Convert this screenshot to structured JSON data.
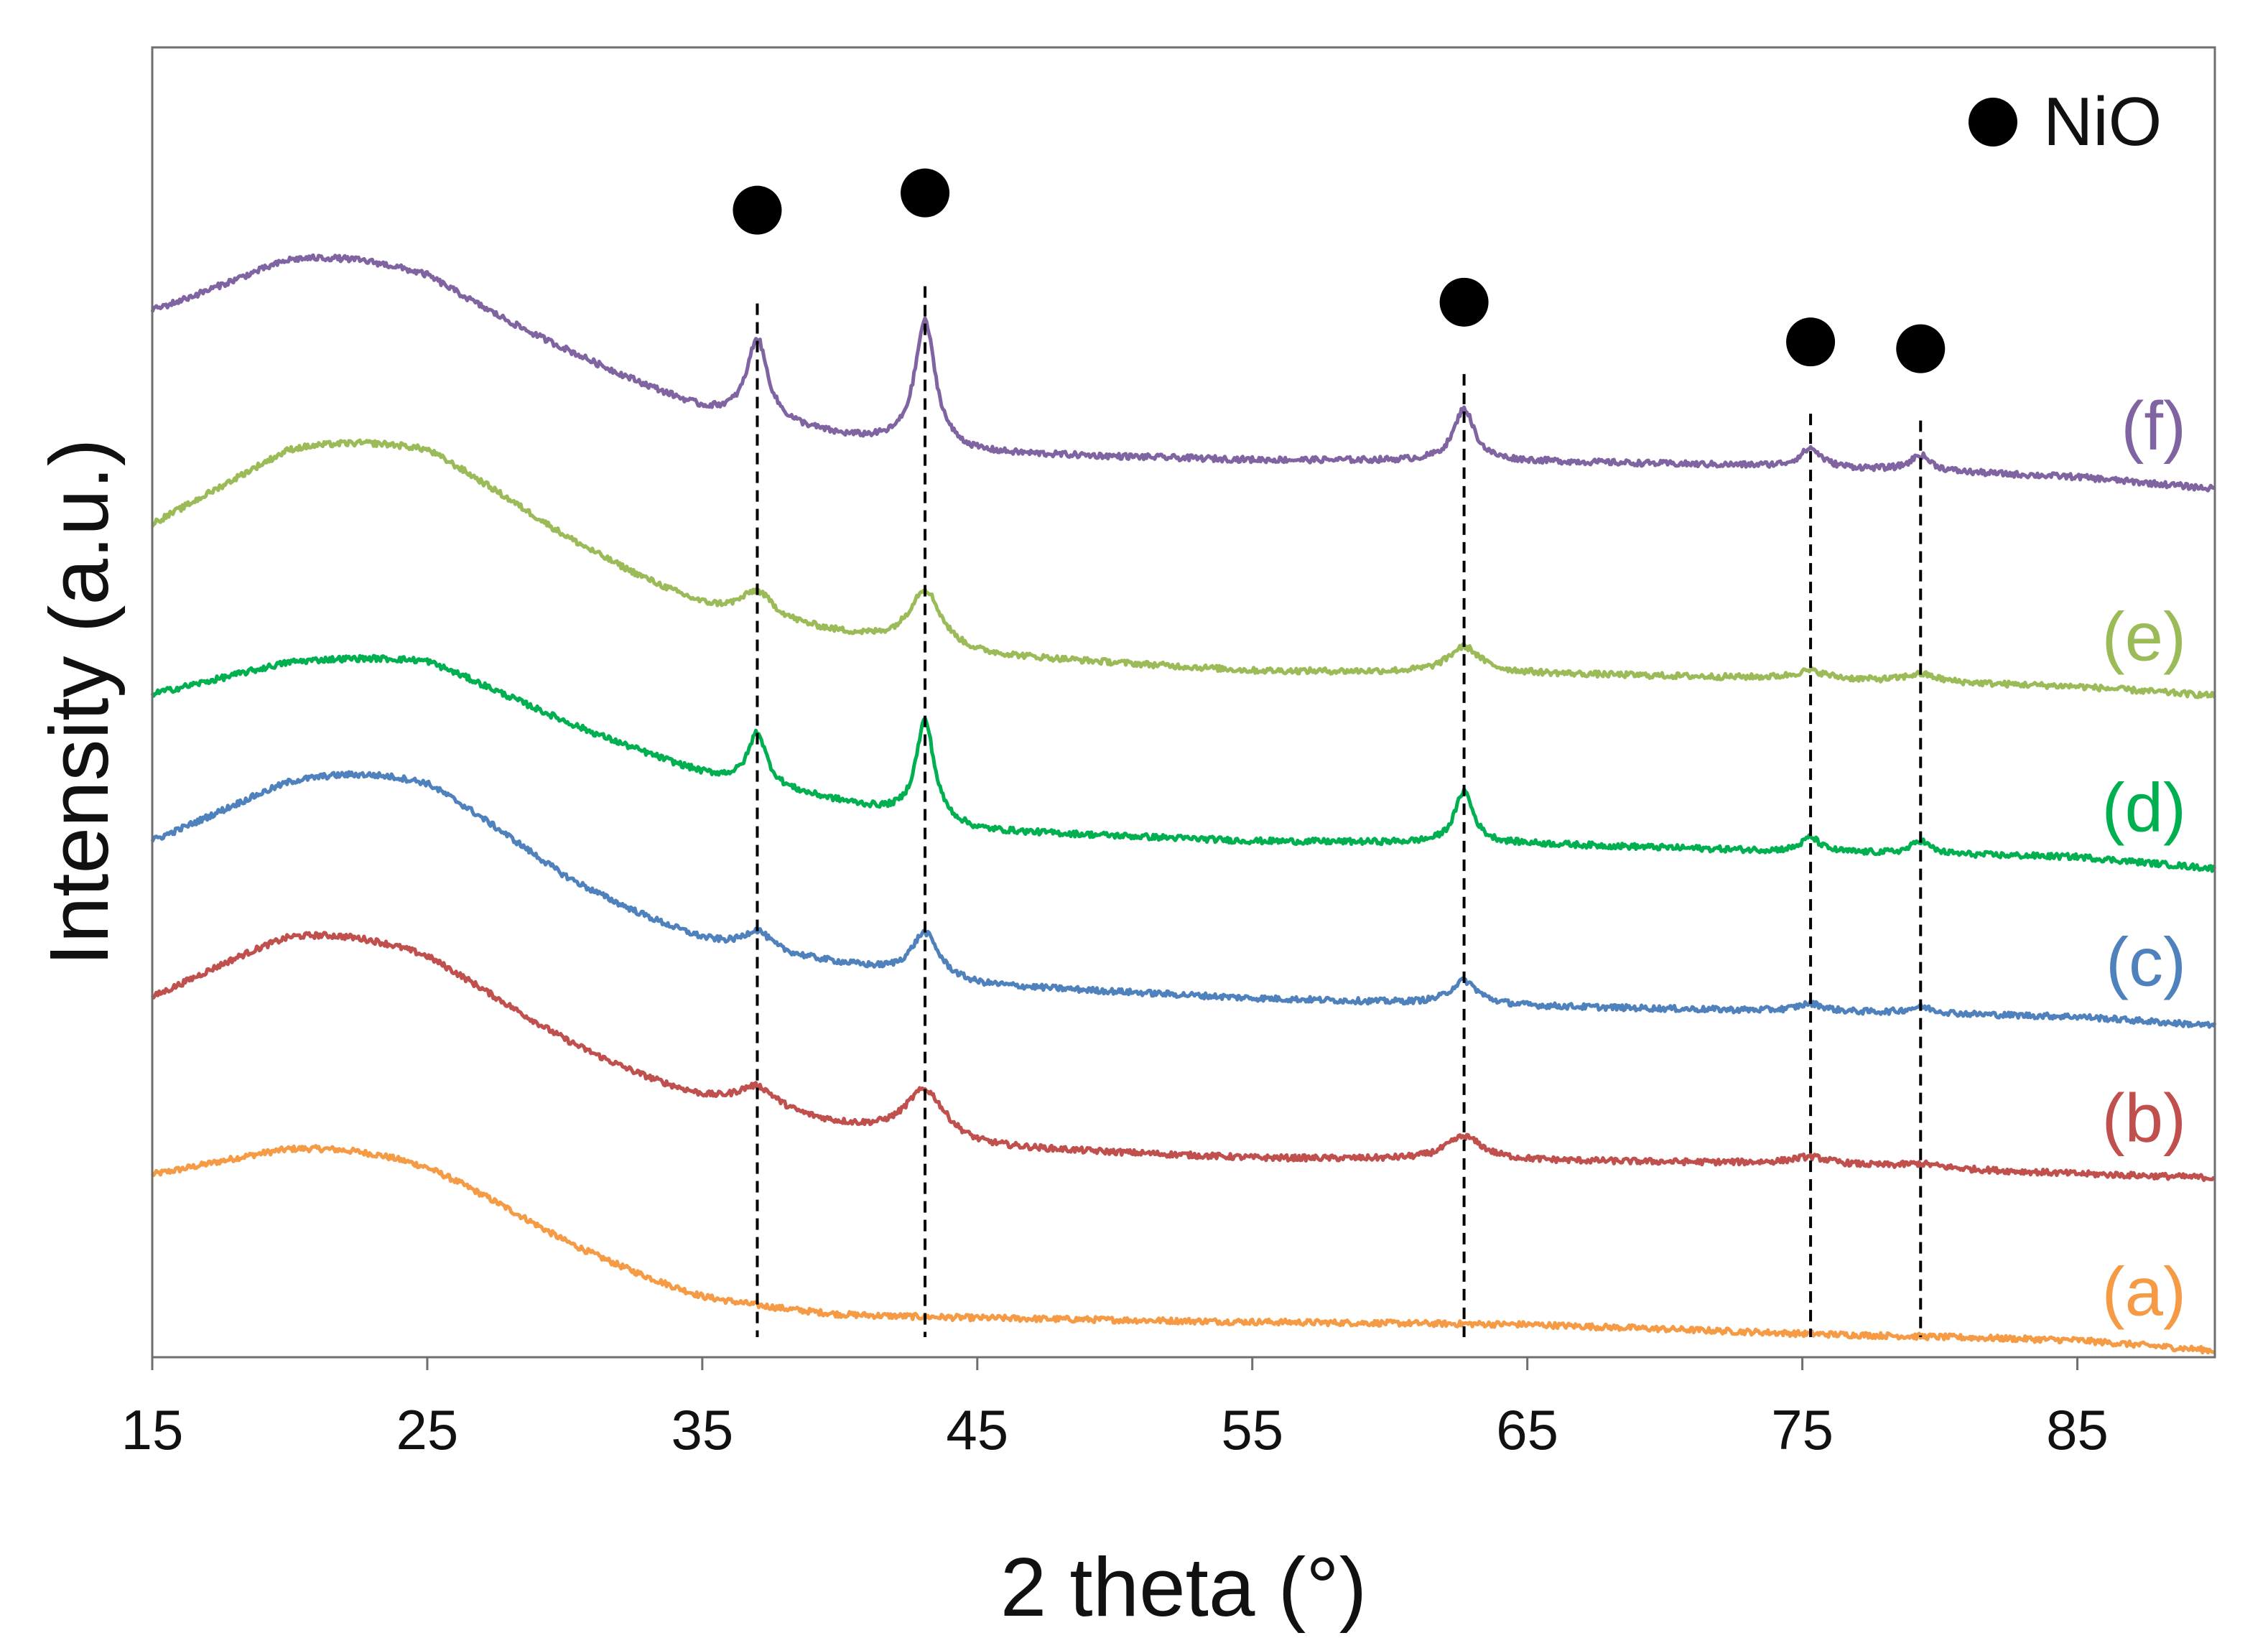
{
  "chart_data": {
    "type": "line",
    "title": "",
    "xlabel": "2 theta (°)",
    "ylabel": "Intensity (a.u.)",
    "xlim": [
      15,
      90
    ],
    "ylim": [
      0,
      100
    ],
    "xticks": [
      15,
      25,
      35,
      45,
      55,
      65,
      75,
      85
    ],
    "xtick_labels": [
      "15",
      "25",
      "35",
      "45",
      "55",
      "65",
      "75",
      "85"
    ],
    "grid": false,
    "y_units": "stacked arbitrary intensity (0 = axis bottom, 100 = axis top)",
    "legend": {
      "marker": "filled-circle",
      "label": "NiO",
      "placement": "top-right"
    },
    "nio_peaks": [
      37.0,
      43.1,
      62.7,
      75.3,
      79.3
    ],
    "series": [
      {
        "name": "(a)",
        "color": "#F59A45",
        "baseline": [
          [
            15,
            11.8
          ],
          [
            20,
            11.0
          ],
          [
            25,
            9.2
          ],
          [
            30,
            6.2
          ],
          [
            35,
            4.0
          ],
          [
            40,
            3.2
          ],
          [
            45,
            3.0
          ],
          [
            55,
            2.7
          ],
          [
            65,
            2.5
          ],
          [
            75,
            1.8
          ],
          [
            85,
            1.3
          ],
          [
            90,
            0.5
          ]
        ],
        "humps": [
          [
            23.0,
            5.6,
            5.8
          ]
        ],
        "peaks": []
      },
      {
        "name": "(b)",
        "color": "#C0504D",
        "baseline": [
          [
            15,
            24.6
          ],
          [
            20,
            26.0
          ],
          [
            25,
            25.0
          ],
          [
            30,
            22.0
          ],
          [
            35,
            19.4
          ],
          [
            40,
            17.6
          ],
          [
            45,
            16.0
          ],
          [
            55,
            15.2
          ],
          [
            65,
            15.0
          ],
          [
            75,
            14.8
          ],
          [
            85,
            14.0
          ],
          [
            90,
            13.7
          ]
        ],
        "humps": [
          [
            22.0,
            6.5,
            5.5
          ]
        ],
        "peaks": [
          [
            37.0,
            1.8,
            0.9
          ],
          [
            43.1,
            3.8,
            0.9
          ],
          [
            62.7,
            1.8,
            0.8
          ],
          [
            75.3,
            0.5,
            0.8
          ],
          [
            79.3,
            0.3,
            0.8
          ]
        ]
      },
      {
        "name": "(c)",
        "color": "#4F81BD",
        "baseline": [
          [
            15,
            37.3
          ],
          [
            20,
            38.6
          ],
          [
            25,
            38.0
          ],
          [
            30,
            34.0
          ],
          [
            35,
            31.4
          ],
          [
            40,
            30.0
          ],
          [
            45,
            28.4
          ],
          [
            55,
            27.4
          ],
          [
            65,
            26.8
          ],
          [
            75,
            26.4
          ],
          [
            85,
            26.0
          ],
          [
            90,
            25.3
          ]
        ],
        "humps": [
          [
            23.0,
            6.2,
            5.5
          ]
        ],
        "peaks": [
          [
            37.0,
            1.5,
            0.6
          ],
          [
            43.1,
            3.4,
            0.6
          ],
          [
            62.7,
            1.8,
            0.6
          ],
          [
            75.3,
            0.6,
            0.6
          ],
          [
            79.3,
            0.5,
            0.6
          ]
        ]
      },
      {
        "name": "(d)",
        "color": "#00B050",
        "baseline": [
          [
            15,
            50.1
          ],
          [
            20,
            51.4
          ],
          [
            25,
            51.3
          ],
          [
            30,
            47.8
          ],
          [
            35,
            44.5
          ],
          [
            40,
            42.4
          ],
          [
            45,
            40.2
          ],
          [
            55,
            39.4
          ],
          [
            65,
            39.2
          ],
          [
            75,
            38.6
          ],
          [
            85,
            38.2
          ],
          [
            90,
            37.3
          ]
        ],
        "humps": [
          [
            23.0,
            2.0,
            5.0
          ]
        ],
        "peaks": [
          [
            37.0,
            4.0,
            0.4
          ],
          [
            43.1,
            7.6,
            0.4
          ],
          [
            62.7,
            4.0,
            0.4
          ],
          [
            75.3,
            1.1,
            0.4
          ],
          [
            79.3,
            1.0,
            0.4
          ]
        ]
      },
      {
        "name": "(e)",
        "color": "#9BBB59",
        "baseline": [
          [
            15,
            61.9
          ],
          [
            20,
            65.0
          ],
          [
            25,
            64.6
          ],
          [
            30,
            60.5
          ],
          [
            35,
            57.0
          ],
          [
            40,
            55.2
          ],
          [
            45,
            53.6
          ],
          [
            55,
            52.4
          ],
          [
            65,
            52.2
          ],
          [
            75,
            51.8
          ],
          [
            85,
            51.2
          ],
          [
            90,
            50.5
          ]
        ],
        "humps": [
          [
            23.0,
            5.0,
            5.5
          ]
        ],
        "peaks": [
          [
            37.0,
            2.0,
            0.7
          ],
          [
            43.1,
            4.4,
            0.7
          ],
          [
            62.7,
            2.0,
            0.7
          ],
          [
            75.3,
            0.6,
            0.7
          ],
          [
            79.3,
            0.6,
            0.7
          ]
        ]
      },
      {
        "name": "(f)",
        "color": "#8064A2",
        "baseline": [
          [
            15,
            79.2
          ],
          [
            20,
            80.9
          ],
          [
            25,
            80.3
          ],
          [
            30,
            76.6
          ],
          [
            35,
            72.4
          ],
          [
            40,
            70.3
          ],
          [
            45,
            69.0
          ],
          [
            55,
            68.5
          ],
          [
            65,
            68.4
          ],
          [
            75,
            68.0
          ],
          [
            85,
            67.2
          ],
          [
            90,
            66.3
          ]
        ],
        "humps": [
          [
            21.8,
            3.2,
            4.0
          ]
        ],
        "peaks": [
          [
            37.0,
            6.2,
            0.45
          ],
          [
            43.1,
            9.6,
            0.45
          ],
          [
            62.7,
            4.0,
            0.45
          ],
          [
            75.3,
            1.4,
            0.45
          ],
          [
            79.3,
            1.2,
            0.45
          ]
        ]
      }
    ]
  }
}
